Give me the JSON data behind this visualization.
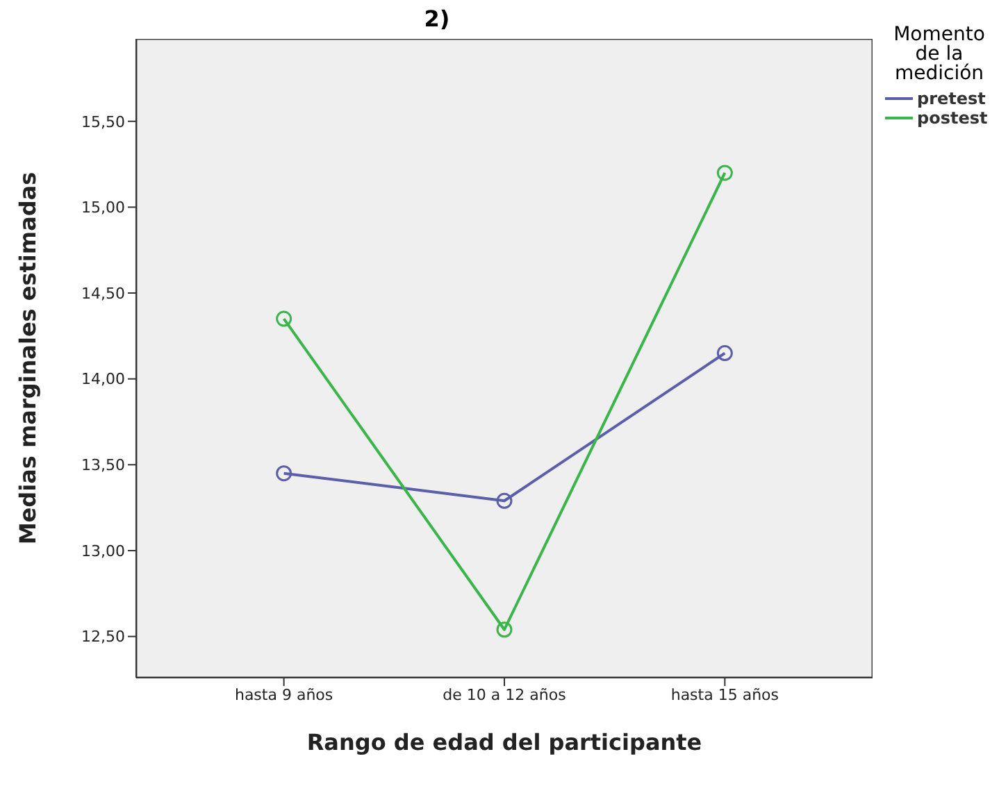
{
  "chart_data": {
    "type": "line",
    "title": "2)",
    "xlabel": "Rango de edad del participante",
    "ylabel": "Medias marginales estimadas",
    "legend_title": "Momento de la medición",
    "categories": [
      "hasta 9 años",
      "de 10 a 12 años",
      "hasta 15 años"
    ],
    "series": [
      {
        "name": "pretest",
        "color": "#5b5ea8",
        "values": [
          13.45,
          13.29,
          14.15
        ]
      },
      {
        "name": "postest",
        "color": "#3ab54a",
        "values": [
          14.35,
          12.54,
          15.2
        ]
      }
    ],
    "ylim": [
      12.26,
      15.98
    ],
    "yticks": [
      {
        "value": 12.5,
        "label": "12,50"
      },
      {
        "value": 13,
        "label": "13,00"
      },
      {
        "value": 13.5,
        "label": "13,50"
      },
      {
        "value": 14,
        "label": "14,00"
      },
      {
        "value": 14.5,
        "label": "14,50"
      },
      {
        "value": 15,
        "label": "15,00"
      },
      {
        "value": 15.5,
        "label": "15,50"
      }
    ],
    "grid": false,
    "legend": "top right",
    "marker": "circle",
    "line_style": "solid"
  }
}
